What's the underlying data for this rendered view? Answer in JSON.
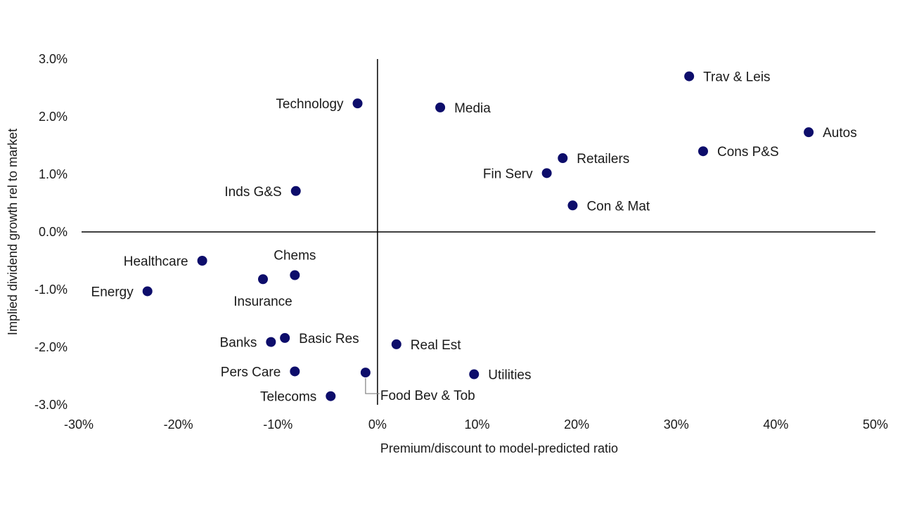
{
  "chart_data": {
    "type": "scatter",
    "xlabel": "Premium/discount to model-predicted ratio",
    "ylabel": "Implied dividend growth rel to market",
    "xlim": [
      -30,
      50
    ],
    "ylim": [
      -3.0,
      3.0
    ],
    "x_ticks": [
      {
        "value": -30,
        "label": "-30%"
      },
      {
        "value": -20,
        "label": "-20%"
      },
      {
        "value": -10,
        "label": "-10%"
      },
      {
        "value": 0,
        "label": "0%"
      },
      {
        "value": 10,
        "label": "10%"
      },
      {
        "value": 20,
        "label": "20%"
      },
      {
        "value": 30,
        "label": "30%"
      },
      {
        "value": 40,
        "label": "40%"
      },
      {
        "value": 50,
        "label": "50%"
      }
    ],
    "y_ticks": [
      {
        "value": 3.0,
        "label": "3.0%"
      },
      {
        "value": 2.0,
        "label": "2.0%"
      },
      {
        "value": 1.0,
        "label": "1.0%"
      },
      {
        "value": 0.0,
        "label": "0.0%"
      },
      {
        "value": -1.0,
        "label": "-1.0%"
      },
      {
        "value": -2.0,
        "label": "-2.0%"
      },
      {
        "value": -3.0,
        "label": "-3.0%"
      }
    ],
    "marker_color": "#0d0d6b",
    "points": [
      {
        "name": "Trav & Leis",
        "x": 31.3,
        "y": 2.7,
        "label_pos": "right"
      },
      {
        "name": "Technology",
        "x": -2.0,
        "y": 2.23,
        "label_pos": "left"
      },
      {
        "name": "Media",
        "x": 6.3,
        "y": 2.16,
        "label_pos": "right"
      },
      {
        "name": "Autos",
        "x": 43.3,
        "y": 1.73,
        "label_pos": "right"
      },
      {
        "name": "Cons P&S",
        "x": 32.7,
        "y": 1.4,
        "label_pos": "right"
      },
      {
        "name": "Retailers",
        "x": 18.6,
        "y": 1.28,
        "label_pos": "right"
      },
      {
        "name": "Fin Serv",
        "x": 17.0,
        "y": 1.02,
        "label_pos": "left"
      },
      {
        "name": "Inds G&S",
        "x": -8.2,
        "y": 0.71,
        "label_pos": "left"
      },
      {
        "name": "Con & Mat",
        "x": 19.6,
        "y": 0.46,
        "label_pos": "right"
      },
      {
        "name": "Healthcare",
        "x": -17.6,
        "y": -0.5,
        "label_pos": "left"
      },
      {
        "name": "Chems",
        "x": -8.3,
        "y": -0.75,
        "label_pos": "above"
      },
      {
        "name": "Insurance",
        "x": -11.5,
        "y": -0.82,
        "label_pos": "below"
      },
      {
        "name": "Energy",
        "x": -23.1,
        "y": -1.03,
        "label_pos": "left"
      },
      {
        "name": "Basic Res",
        "x": -9.3,
        "y": -1.84,
        "label_pos": "right"
      },
      {
        "name": "Banks",
        "x": -10.7,
        "y": -1.91,
        "label_pos": "left"
      },
      {
        "name": "Real Est",
        "x": 1.9,
        "y": -1.95,
        "label_pos": "right"
      },
      {
        "name": "Pers Care",
        "x": -8.3,
        "y": -2.42,
        "label_pos": "left"
      },
      {
        "name": "Food Bev & Tob",
        "x": -1.2,
        "y": -2.44,
        "label_pos": "leader-below"
      },
      {
        "name": "Utilities",
        "x": 9.7,
        "y": -2.47,
        "label_pos": "right"
      },
      {
        "name": "Telecoms",
        "x": -4.7,
        "y": -2.85,
        "label_pos": "left"
      }
    ]
  }
}
